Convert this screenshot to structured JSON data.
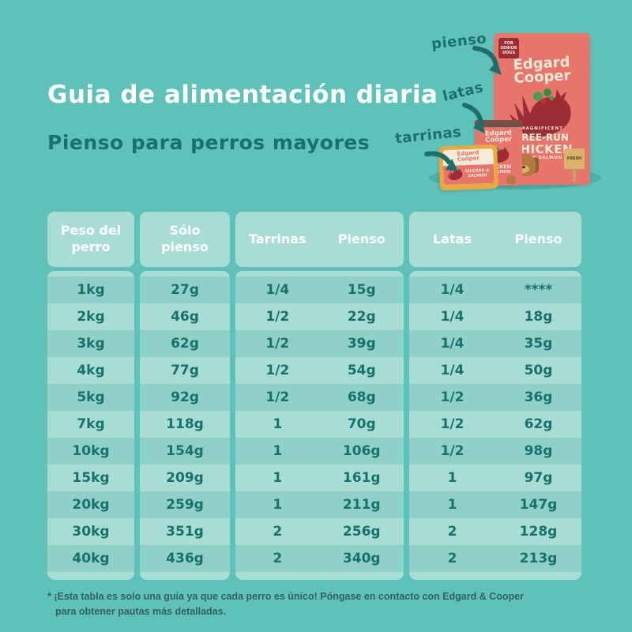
{
  "page": {
    "title": "Guia de alimentación diaria",
    "subtitle": "Pienso para perros mayores"
  },
  "product_labels": {
    "pienso": "pienso",
    "latas": "latas",
    "tarrinas": "tarrinas"
  },
  "products": {
    "brand_line1": "Edgard",
    "brand_line2": "Cooper",
    "bag": {
      "tag": "FOR SENIOR DOGS",
      "kicker": "MAGNIFICENT",
      "name_line1": "FREE-RUN",
      "name_line2": "CHICKEN",
      "name_sub": "WITH SALMON",
      "sign": "FRESH"
    },
    "can": {
      "variety_line1": "CHICKEN",
      "variety_line2": "& SALMON"
    },
    "tray": {
      "variety": "CHICKEN & SALMON"
    }
  },
  "tables": {
    "weight": {
      "header_line1": "Peso del",
      "header_line2": "perro",
      "rows": [
        "1kg",
        "2kg",
        "3kg",
        "4kg",
        "5kg",
        "7kg",
        "10kg",
        "15kg",
        "20kg",
        "30kg",
        "40kg"
      ]
    },
    "dry": {
      "header_line1": "Sólo",
      "header_line2": "pienso",
      "rows": [
        "27g",
        "46g",
        "62g",
        "77g",
        "92g",
        "118g",
        "154g",
        "209g",
        "259g",
        "351g",
        "436g"
      ]
    },
    "trays": {
      "header_left": "Tarrinas",
      "header_right": "Pienso",
      "rows": [
        [
          "1/4",
          "15g"
        ],
        [
          "1/2",
          "22g"
        ],
        [
          "1/2",
          "39g"
        ],
        [
          "1/2",
          "54g"
        ],
        [
          "1/2",
          "68g"
        ],
        [
          "1",
          "70g"
        ],
        [
          "1",
          "106g"
        ],
        [
          "1",
          "161g"
        ],
        [
          "1",
          "211g"
        ],
        [
          "2",
          "256g"
        ],
        [
          "2",
          "340g"
        ]
      ]
    },
    "cans": {
      "header_left": "Latas",
      "header_right": "Pienso",
      "rows": [
        [
          "1/4",
          "****"
        ],
        [
          "1/4",
          "18g"
        ],
        [
          "1/4",
          "35g"
        ],
        [
          "1/4",
          "50g"
        ],
        [
          "1/2",
          "36g"
        ],
        [
          "1/2",
          "62g"
        ],
        [
          "1/2",
          "98g"
        ],
        [
          "1",
          "97g"
        ],
        [
          "1",
          "147g"
        ],
        [
          "2",
          "128g"
        ],
        [
          "2",
          "213g"
        ]
      ]
    }
  },
  "footnote": {
    "marker": "*",
    "line1": "¡Esta tabla es solo una guía ya que cada perro es único! Póngase en contacto con Edgard & Cooper",
    "line2": "para obtener pautas más detalladas."
  },
  "colors": {
    "background": "#5fc2ba",
    "panel": "#a8ddd6",
    "rowDark": "#8fd0c9",
    "ink": "#17726d",
    "white": "#ffffff",
    "footnote": "#33615e",
    "coral": "#e7756b",
    "darkRed": "#9c2d36",
    "cream": "#f6ead9",
    "gold": "#e9a93e",
    "brown": "#b5793f",
    "shadow": "#4cb0a8",
    "label": "#1d6f6a"
  }
}
